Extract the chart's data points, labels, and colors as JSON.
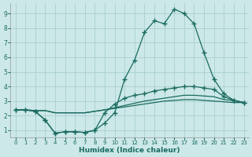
{
  "xlabel": "Humidex (Indice chaleur)",
  "xlim": [
    -0.5,
    23.5
  ],
  "ylim": [
    0.5,
    9.7
  ],
  "xticks": [
    0,
    1,
    2,
    3,
    4,
    5,
    6,
    7,
    8,
    9,
    10,
    11,
    12,
    13,
    14,
    15,
    16,
    17,
    18,
    19,
    20,
    21,
    22,
    23
  ],
  "yticks": [
    1,
    2,
    3,
    4,
    5,
    6,
    7,
    8,
    9
  ],
  "bg_color": "#cce8e8",
  "grid_color": "#aad0d0",
  "line_color": "#1a6b60",
  "line_width": 0.9,
  "marker": "+",
  "marker_size": 4,
  "curve1_x": [
    0,
    1,
    2,
    3,
    4,
    5,
    6,
    7,
    8,
    9,
    10,
    11,
    12,
    13,
    14,
    15,
    16,
    17,
    18,
    19,
    20,
    21,
    22,
    23
  ],
  "curve1_y": [
    2.4,
    2.4,
    2.3,
    1.7,
    0.8,
    0.9,
    0.9,
    0.85,
    1.0,
    1.5,
    2.2,
    4.5,
    5.8,
    7.7,
    8.5,
    8.3,
    9.3,
    9.0,
    8.3,
    6.3,
    4.5,
    3.5,
    3.05,
    2.9
  ],
  "curve2_x": [
    0,
    1,
    2,
    3,
    4,
    5,
    6,
    7,
    8,
    9,
    10,
    11,
    12,
    13,
    14,
    15,
    16,
    17,
    18,
    19,
    20,
    21,
    22,
    23
  ],
  "curve2_y": [
    2.4,
    2.4,
    2.3,
    1.7,
    0.8,
    0.9,
    0.9,
    0.85,
    1.0,
    2.2,
    2.8,
    3.2,
    3.4,
    3.5,
    3.7,
    3.8,
    3.9,
    4.0,
    4.0,
    3.9,
    3.8,
    3.3,
    3.05,
    2.9
  ],
  "curve3_x": [
    0,
    1,
    2,
    3,
    4,
    5,
    6,
    7,
    8,
    9,
    10,
    11,
    12,
    13,
    14,
    15,
    16,
    17,
    18,
    19,
    20,
    21,
    22,
    23
  ],
  "curve3_y": [
    2.4,
    2.4,
    2.35,
    2.35,
    2.2,
    2.2,
    2.2,
    2.2,
    2.3,
    2.4,
    2.55,
    2.7,
    2.85,
    3.0,
    3.1,
    3.2,
    3.3,
    3.4,
    3.4,
    3.35,
    3.3,
    3.1,
    3.05,
    2.9
  ],
  "curve4_x": [
    0,
    1,
    2,
    3,
    4,
    5,
    6,
    7,
    8,
    9,
    10,
    11,
    12,
    13,
    14,
    15,
    16,
    17,
    18,
    19,
    20,
    21,
    22,
    23
  ],
  "curve4_y": [
    2.4,
    2.4,
    2.35,
    2.35,
    2.2,
    2.2,
    2.2,
    2.2,
    2.3,
    2.4,
    2.5,
    2.6,
    2.7,
    2.8,
    2.9,
    3.0,
    3.05,
    3.1,
    3.1,
    3.05,
    3.0,
    2.95,
    2.9,
    2.9
  ]
}
